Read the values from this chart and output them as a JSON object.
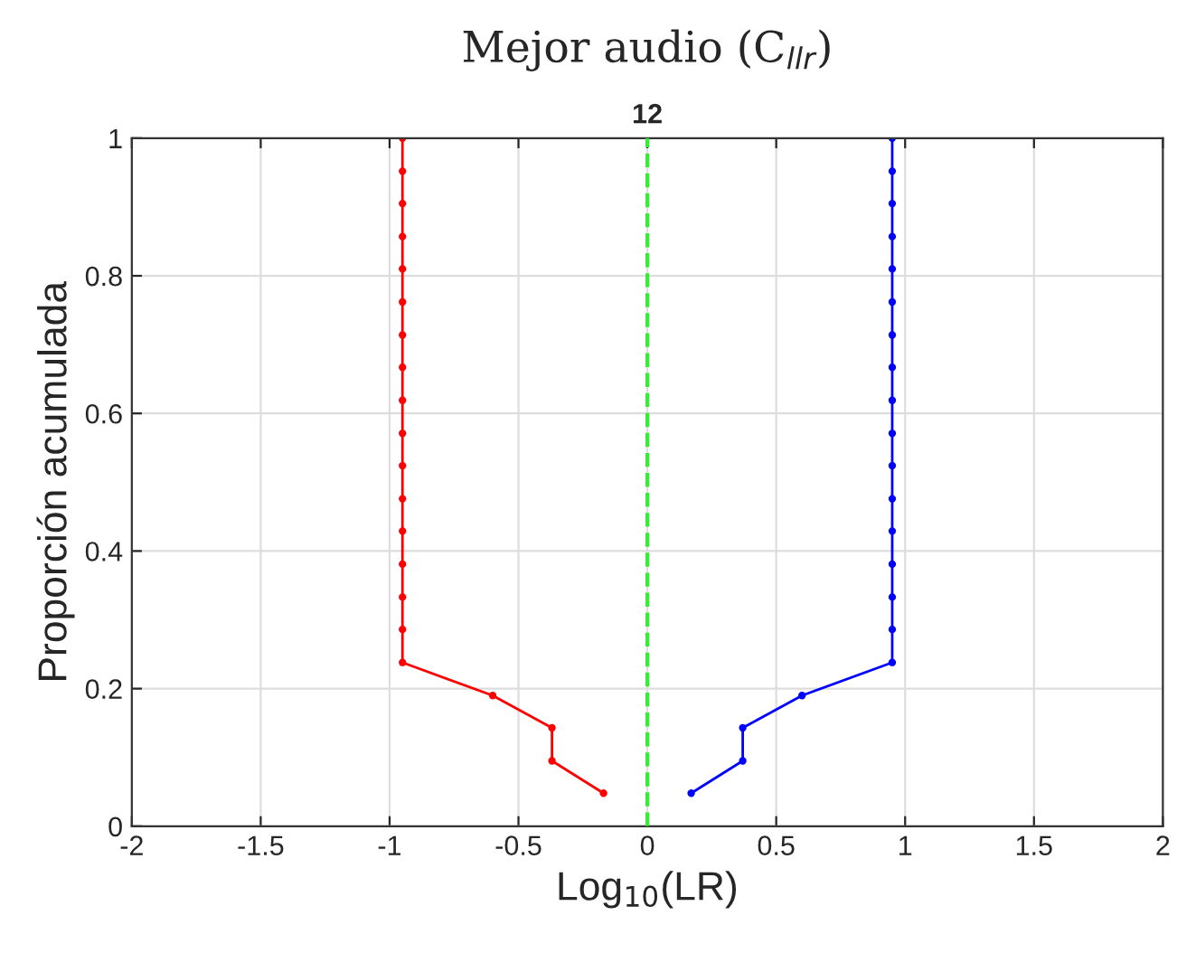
{
  "chart_data": {
    "type": "line",
    "title": "Mejor audio (C$_{llr}$)",
    "subtitle": "12",
    "xlabel": "Log$_{10}$(LR)",
    "ylabel": "Proporción acumulada",
    "series": [
      {
        "color": "#ff0000",
        "x": [
          -0.17,
          -0.37,
          -0.37,
          -0.6,
          -0.95,
          -0.95,
          -0.95,
          -0.95,
          -0.95,
          -0.95,
          -0.95,
          -0.95,
          -0.95,
          -0.95,
          -0.95,
          -0.95,
          -0.95,
          -0.95,
          -0.95,
          -0.95,
          -0.95
        ],
        "values": [
          0.048,
          0.095,
          0.143,
          0.19,
          0.238,
          0.286,
          0.333,
          0.381,
          0.429,
          0.476,
          0.524,
          0.571,
          0.619,
          0.667,
          0.714,
          0.762,
          0.81,
          0.857,
          0.905,
          0.952,
          1.0
        ]
      },
      {
        "color": "#0000ff",
        "x": [
          0.17,
          0.37,
          0.37,
          0.6,
          0.95,
          0.95,
          0.95,
          0.95,
          0.95,
          0.95,
          0.95,
          0.95,
          0.95,
          0.95,
          0.95,
          0.95,
          0.95,
          0.95,
          0.95,
          0.95,
          0.95
        ],
        "values": [
          0.048,
          0.095,
          0.143,
          0.19,
          0.238,
          0.286,
          0.333,
          0.381,
          0.429,
          0.476,
          0.524,
          0.571,
          0.619,
          0.667,
          0.714,
          0.762,
          0.81,
          0.857,
          0.905,
          0.952,
          1.0
        ]
      }
    ],
    "ref_lines": [
      {
        "axis": "x",
        "value": 0,
        "color": "#33ee33",
        "line_style": "dashed"
      }
    ],
    "xlim": [
      -2,
      2
    ],
    "xticks": [
      -2,
      -1.5,
      -1,
      -0.5,
      0,
      0.5,
      1,
      1.5,
      2
    ],
    "ylim": [
      0,
      1
    ],
    "yticks": [
      0,
      0.2,
      0.4,
      0.6,
      0.8,
      1
    ],
    "grid": true,
    "marker": "circle",
    "line_style": "solid"
  }
}
